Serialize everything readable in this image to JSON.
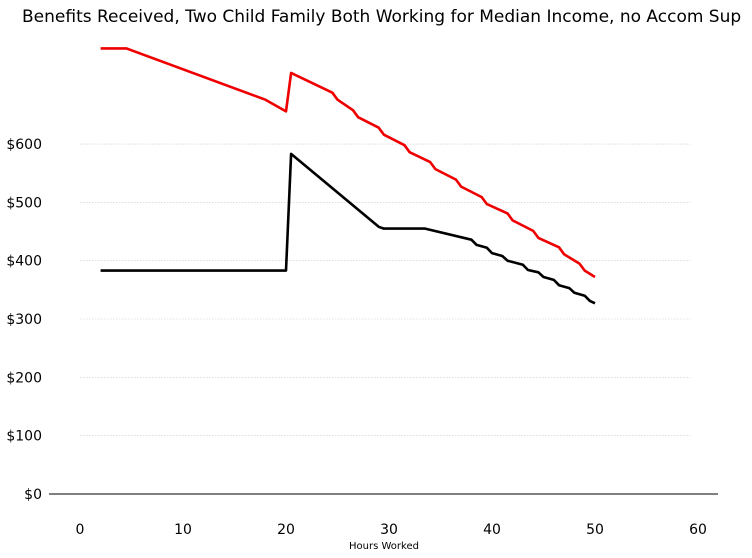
{
  "chart_data": {
    "type": "line",
    "title": "Benefits Received, Two Child Family Both Working for Median Income, no Accom Sup",
    "xlabel": "Hours Worked",
    "ylabel": "",
    "xlim": [
      -3,
      62
    ],
    "ylim": [
      0,
      770
    ],
    "xticks": [
      0,
      10,
      20,
      30,
      40,
      50,
      60
    ],
    "xtick_labels": [
      "0",
      "10",
      "20",
      "30",
      "40",
      "50",
      "60"
    ],
    "yticks": [
      0,
      100,
      200,
      300,
      400,
      500,
      600
    ],
    "ytick_labels": [
      "$0",
      "$100",
      "$200",
      "$300",
      "$400",
      "$500",
      "$600"
    ],
    "grid": "horizontal dotted",
    "legend": "none",
    "series": [
      {
        "color": "#ee0000",
        "x": [
          2,
          4.5,
          18,
          20,
          20.5,
          24.5,
          25,
          26.5,
          27,
          29,
          29.5,
          31.5,
          32,
          34,
          34.5,
          36.5,
          37,
          39,
          39.5,
          41.5,
          42,
          44,
          44.5,
          46.5,
          47,
          48.5,
          49,
          50
        ],
        "y": [
          764,
          764,
          676,
          656,
          722,
          688,
          676,
          658,
          646,
          628,
          616,
          598,
          586,
          569,
          557,
          539,
          527,
          509,
          497,
          481,
          469,
          451,
          439,
          423,
          411,
          395,
          383,
          372
        ]
      },
      {
        "color": "#000000",
        "x": [
          2,
          20,
          20.5,
          29,
          29.5,
          33.5,
          38,
          38.5,
          39.5,
          40,
          41,
          41.5,
          43,
          43.5,
          44.5,
          45,
          46,
          46.5,
          47.5,
          48,
          49,
          49.5,
          50
        ],
        "y": [
          383,
          383,
          583,
          458,
          455,
          455,
          436,
          427,
          422,
          413,
          408,
          400,
          393,
          384,
          380,
          372,
          367,
          358,
          353,
          345,
          340,
          331,
          327
        ]
      }
    ]
  }
}
